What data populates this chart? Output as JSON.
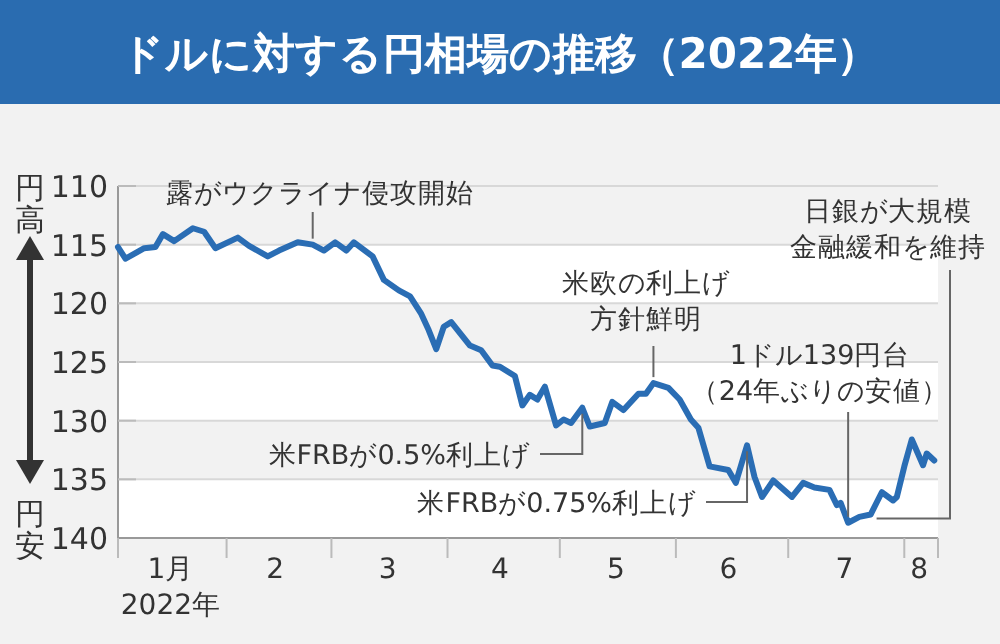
{
  "chart_data": {
    "type": "line",
    "title": "ドルに対する円相場の推移（2022年）",
    "xlabel": "2022年",
    "xlim": [
      "2022-01-03",
      "2022-08-10"
    ],
    "xticks": [
      {
        "value": "2022-01-03",
        "label": null
      },
      {
        "value": "2022-01-17",
        "label": "1月"
      },
      {
        "value": "2022-02-01",
        "label": null
      },
      {
        "value": "2022-02-14",
        "label": "2"
      },
      {
        "value": "2022-03-01",
        "label": null
      },
      {
        "value": "2022-03-16",
        "label": "3"
      },
      {
        "value": "2022-04-01",
        "label": null
      },
      {
        "value": "2022-04-15",
        "label": "4"
      },
      {
        "value": "2022-05-01",
        "label": null
      },
      {
        "value": "2022-05-16",
        "label": "5"
      },
      {
        "value": "2022-06-01",
        "label": null
      },
      {
        "value": "2022-06-15",
        "label": "6"
      },
      {
        "value": "2022-07-01",
        "label": null
      },
      {
        "value": "2022-07-16",
        "label": "7"
      },
      {
        "value": "2022-08-01",
        "label": null
      },
      {
        "value": "2022-08-05",
        "label": "8"
      },
      {
        "value": "2022-08-10",
        "label": null
      }
    ],
    "ylim": [
      140,
      110
    ],
    "yticks": [
      110,
      115,
      120,
      125,
      130,
      135,
      140
    ],
    "grid": "y",
    "series": [
      {
        "color": "#2a6db4",
        "x": [
          "2022-01-03",
          "2022-01-05",
          "2022-01-10",
          "2022-01-13",
          "2022-01-15",
          "2022-01-18",
          "2022-01-23",
          "2022-01-26",
          "2022-01-29",
          "2022-02-04",
          "2022-02-07",
          "2022-02-12",
          "2022-02-15",
          "2022-02-20",
          "2022-02-24",
          "2022-02-27",
          "2022-03-02",
          "2022-03-05",
          "2022-03-07",
          "2022-03-12",
          "2022-03-15",
          "2022-03-19",
          "2022-03-22",
          "2022-03-25",
          "2022-03-27",
          "2022-03-29",
          "2022-03-31",
          "2022-04-02",
          "2022-04-07",
          "2022-04-10",
          "2022-04-13",
          "2022-04-15",
          "2022-04-19",
          "2022-04-21",
          "2022-04-23",
          "2022-04-25",
          "2022-04-27",
          "2022-04-30",
          "2022-05-02",
          "2022-05-04",
          "2022-05-07",
          "2022-05-09",
          "2022-05-13",
          "2022-05-15",
          "2022-05-18",
          "2022-05-22",
          "2022-05-24",
          "2022-05-26",
          "2022-05-30",
          "2022-06-02",
          "2022-06-05",
          "2022-06-07",
          "2022-06-10",
          "2022-06-15",
          "2022-06-17",
          "2022-06-20",
          "2022-06-22",
          "2022-06-24",
          "2022-06-27",
          "2022-07-02",
          "2022-07-05",
          "2022-07-08",
          "2022-07-12",
          "2022-07-14",
          "2022-07-15",
          "2022-07-17",
          "2022-07-20",
          "2022-07-23",
          "2022-07-26",
          "2022-07-29",
          "2022-07-30",
          "2022-08-01",
          "2022-08-03",
          "2022-08-06",
          "2022-08-07",
          "2022-08-09"
        ],
        "values": [
          115.2,
          116.2,
          115.3,
          115.2,
          114.1,
          114.7,
          113.6,
          113.9,
          115.3,
          114.4,
          115.1,
          116.0,
          115.5,
          114.8,
          115.0,
          115.5,
          114.8,
          115.5,
          114.8,
          116.0,
          118.0,
          118.9,
          119.4,
          120.9,
          122.3,
          123.9,
          122.0,
          121.6,
          123.6,
          124.0,
          125.3,
          125.4,
          126.2,
          128.7,
          127.8,
          128.2,
          127.1,
          130.4,
          129.9,
          130.2,
          128.9,
          130.5,
          130.2,
          128.4,
          129.1,
          127.7,
          127.7,
          126.8,
          127.2,
          128.2,
          129.9,
          130.6,
          133.9,
          134.2,
          135.3,
          132.1,
          134.8,
          136.5,
          135.1,
          136.5,
          135.3,
          135.7,
          135.9,
          137.2,
          137.0,
          138.7,
          138.2,
          138.0,
          136.1,
          136.8,
          136.5,
          133.9,
          131.6,
          133.8,
          132.8,
          133.4
        ]
      }
    ],
    "annotations": [
      "円高",
      "円安",
      {
        "text": "露がウクライナ侵攻開始",
        "x": "2022-02-24",
        "y": 115.0
      },
      {
        "text": "米欧の利上げ方針鮮明",
        "x": "2022-05-26",
        "y": 126.8
      },
      {
        "text": "日銀が大規模金融緩和を維持",
        "x": "2022-07-23",
        "y": 138.0
      },
      {
        "text": "1ドル139円台（24年ぶりの安値）",
        "x": "2022-07-17",
        "y": 138.7
      },
      {
        "text": "米FRBが0.5%利上げ",
        "x": "2022-05-07",
        "y": 128.9
      },
      {
        "text": "米FRBが0.75%利上げ",
        "x": "2022-06-20",
        "y": 132.1
      }
    ]
  }
}
